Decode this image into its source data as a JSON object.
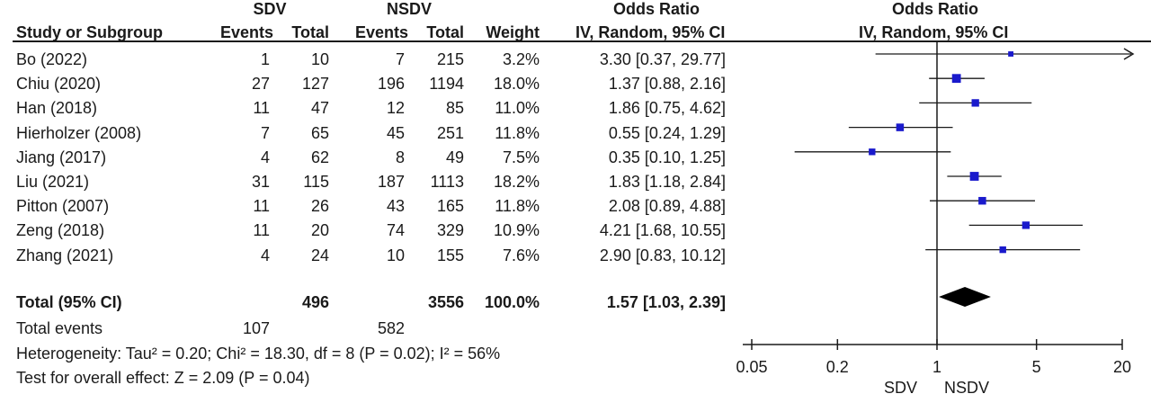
{
  "headers": {
    "group1": "SDV",
    "group2": "NSDV",
    "or_col": "Odds Ratio",
    "or_plot": "Odds Ratio",
    "study": "Study or Subgroup",
    "events1": "Events",
    "total1": "Total",
    "events2": "Events",
    "total2": "Total",
    "weight": "Weight",
    "method_col": "IV, Random, 95% CI",
    "method_plot": "IV, Random, 95% CI"
  },
  "studies": [
    {
      "name": "Bo (2022)",
      "events1": "1",
      "total1": "10",
      "events2": "7",
      "total2": "215",
      "weight": "3.2%",
      "ci_text": "3.30 [0.37, 29.77]"
    },
    {
      "name": "Chiu (2020)",
      "events1": "27",
      "total1": "127",
      "events2": "196",
      "total2": "1194",
      "weight": "18.0%",
      "ci_text": "1.37 [0.88, 2.16]"
    },
    {
      "name": "Han (2018)",
      "events1": "11",
      "total1": "47",
      "events2": "12",
      "total2": "85",
      "weight": "11.0%",
      "ci_text": "1.86 [0.75, 4.62]"
    },
    {
      "name": "Hierholzer (2008)",
      "events1": "7",
      "total1": "65",
      "events2": "45",
      "total2": "251",
      "weight": "11.8%",
      "ci_text": "0.55 [0.24, 1.29]"
    },
    {
      "name": "Jiang (2017)",
      "events1": "4",
      "total1": "62",
      "events2": "8",
      "total2": "49",
      "weight": "7.5%",
      "ci_text": "0.35 [0.10, 1.25]"
    },
    {
      "name": "Liu (2021)",
      "events1": "31",
      "total1": "115",
      "events2": "187",
      "total2": "1113",
      "weight": "18.2%",
      "ci_text": "1.83 [1.18, 2.84]"
    },
    {
      "name": "Pitton (2007)",
      "events1": "11",
      "total1": "26",
      "events2": "43",
      "total2": "165",
      "weight": "11.8%",
      "ci_text": "2.08 [0.89, 4.88]"
    },
    {
      "name": "Zeng (2018)",
      "events1": "11",
      "total1": "20",
      "events2": "74",
      "total2": "329",
      "weight": "10.9%",
      "ci_text": "4.21 [1.68, 10.55]"
    },
    {
      "name": "Zhang (2021)",
      "events1": "4",
      "total1": "24",
      "events2": "10",
      "total2": "155",
      "weight": "7.6%",
      "ci_text": "2.90 [0.83, 10.12]"
    }
  ],
  "total_row": {
    "name": "Total (95% CI)",
    "total1": "496",
    "total2": "3556",
    "weight": "100.0%",
    "ci_text": "1.57 [1.03, 2.39]"
  },
  "events_row": {
    "name": "Total events",
    "events1": "107",
    "events2": "582"
  },
  "heterogeneity": "Heterogeneity: Tau² = 0.20; Chi² = 18.30, df = 8 (P = 0.02); I² = 56%",
  "overall_effect": "Test for overall effect: Z = 2.09 (P = 0.04)",
  "axis": {
    "ticks": [
      "0.05",
      "0.2",
      "1",
      "5",
      "20"
    ],
    "left_label": "SDV",
    "right_label": "NSDV"
  },
  "colors": {
    "square": "#1a1acc",
    "line": "#1a1a1a"
  },
  "chart_data": {
    "type": "forest",
    "scale": "log",
    "xlim": [
      0.05,
      20
    ],
    "null_line": 1,
    "points": [
      {
        "study": "Bo (2022)",
        "or": 3.3,
        "lo": 0.37,
        "hi": 29.77,
        "weight": 3.2
      },
      {
        "study": "Chiu (2020)",
        "or": 1.37,
        "lo": 0.88,
        "hi": 2.16,
        "weight": 18.0
      },
      {
        "study": "Han (2018)",
        "or": 1.86,
        "lo": 0.75,
        "hi": 4.62,
        "weight": 11.0
      },
      {
        "study": "Hierholzer (2008)",
        "or": 0.55,
        "lo": 0.24,
        "hi": 1.29,
        "weight": 11.8
      },
      {
        "study": "Jiang (2017)",
        "or": 0.35,
        "lo": 0.1,
        "hi": 1.25,
        "weight": 7.5
      },
      {
        "study": "Liu (2021)",
        "or": 1.83,
        "lo": 1.18,
        "hi": 2.84,
        "weight": 18.2
      },
      {
        "study": "Pitton (2007)",
        "or": 2.08,
        "lo": 0.89,
        "hi": 4.88,
        "weight": 11.8
      },
      {
        "study": "Zeng (2018)",
        "or": 4.21,
        "lo": 1.68,
        "hi": 10.55,
        "weight": 10.9
      },
      {
        "study": "Zhang (2021)",
        "or": 2.9,
        "lo": 0.83,
        "hi": 10.12,
        "weight": 7.6
      }
    ],
    "summary": {
      "or": 1.57,
      "lo": 1.03,
      "hi": 2.39
    }
  }
}
